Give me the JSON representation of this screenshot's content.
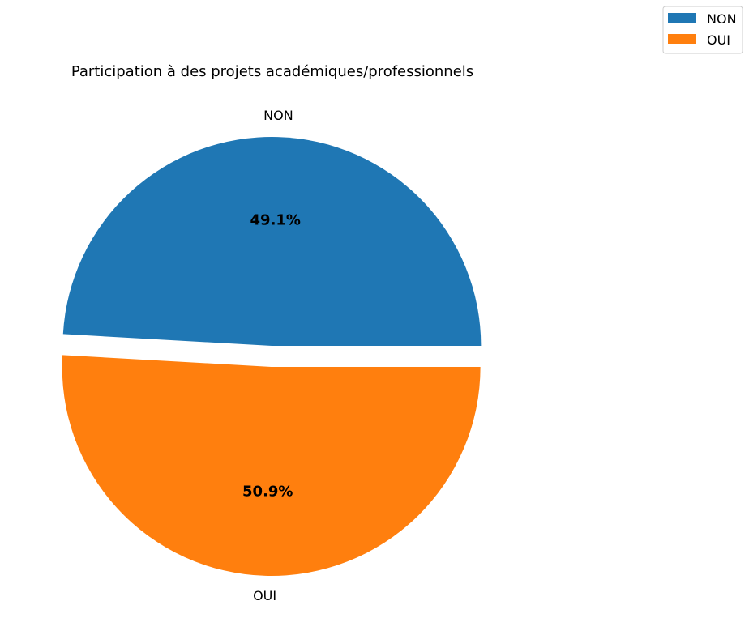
{
  "chart_data": {
    "type": "pie",
    "title": "Participation à des projets académiques/professionnels",
    "categories": [
      "NON",
      "OUI"
    ],
    "values": [
      49.1,
      50.9
    ],
    "value_labels": [
      "49.1%",
      "50.9%"
    ],
    "colors": [
      "#1f77b4",
      "#ff7f0e"
    ],
    "exploded": [
      "NON",
      "OUI"
    ],
    "legend": {
      "position": "top-right",
      "entries": [
        "NON",
        "OUI"
      ]
    }
  }
}
